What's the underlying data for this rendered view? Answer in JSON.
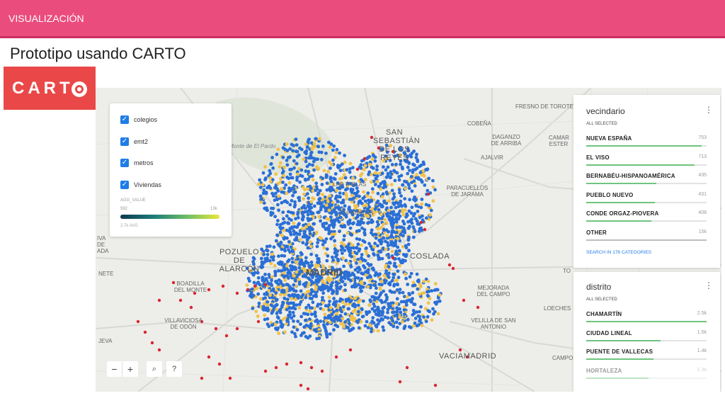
{
  "header": {
    "section": "VISUALIZACIÓN"
  },
  "slide": {
    "title": "Prototipo usando CARTO"
  },
  "logo": {
    "wordmark": "CART",
    "alt": "CARTO"
  },
  "legend": {
    "layers": [
      {
        "name": "colegios",
        "checked": true
      },
      {
        "name": "emt2",
        "checked": true
      },
      {
        "name": "metros",
        "checked": true
      },
      {
        "name": "Viviendas",
        "checked": true
      }
    ],
    "agg_label": "AGG_VALUE",
    "min": "592",
    "max": "13k",
    "avg": "2.7k AVG"
  },
  "map_controls": {
    "zoom_out": "−",
    "zoom_in": "+",
    "search": "⌕",
    "help": "?"
  },
  "places": {
    "fresno": "FRESNO DE TOROTE",
    "cobena": "COBEÑA",
    "daganzo": "DAGANZO DE ARRIBA",
    "camar": "CAMAR ESTER",
    "ajalvir": "AJALVIR",
    "sanse": "SAN SEBASTIÁN DE LOS REYES",
    "paracuellos": "PARACUELLOS DE JARAMA",
    "monte": "Monte de El Pardo",
    "las_tablas": "LAS TABLAS",
    "chamartin": "CHAMARTÍN",
    "pozuelo": "POZUELO DE ALARCÓN",
    "coslada": "COSLADA",
    "madrid": "MADRID",
    "boadilla": "BOADILLA DEL MONTE",
    "mejorada": "MEJORADA DEL CAMPO",
    "loeches": "LOECHES",
    "villaviciosa": "VILLAVICIOSA DE ODÓN",
    "velilla": "VELILLA DE SAN ANTONIO",
    "vaciamadrid": "VACIAMADRID",
    "campo": "CAMPO",
    "to": "TO",
    "iva": "IVA DE ADA",
    "nete": "NETE",
    "jeva": "JEVA"
  },
  "widget_vecindario": {
    "title": "vecindario",
    "selected": "ALL SELECTED",
    "menu": "⋮",
    "items": [
      {
        "name": "NUEVA ESPAÑA",
        "value": "753",
        "fraction": 0.96
      },
      {
        "name": "EL VISO",
        "value": "713",
        "fraction": 0.9
      },
      {
        "name": "BERNABÉU-HISPANOAMÉRICA",
        "value": "435",
        "fraction": 0.58
      },
      {
        "name": "PUEBLO NUEVO",
        "value": "431",
        "fraction": 0.57
      },
      {
        "name": "CONDE ORGAZ-PIOVERA",
        "value": "408",
        "fraction": 0.54
      },
      {
        "name": "OTHER",
        "value": "15k",
        "fraction": 1.0
      }
    ],
    "search": "SEARCH IN 176 CATEGORIES"
  },
  "widget_distrito": {
    "title": "distrito",
    "selected": "ALL SELECTED",
    "menu": "⋮",
    "items": [
      {
        "name": "CHAMARTÍN",
        "value": "2.5k",
        "fraction": 1.0
      },
      {
        "name": "CIUDAD LINEAL",
        "value": "1.5k",
        "fraction": 0.62
      },
      {
        "name": "PUENTE DE VALLECAS",
        "value": "1.4k",
        "fraction": 0.56
      },
      {
        "name": "HORTALEZA",
        "value": "1.3k",
        "fraction": 0.52
      }
    ]
  },
  "colors": {
    "header": "#ea4c7e",
    "logo": "#ea4848",
    "point_blue": "#2a6fd6",
    "point_yellow": "#f0c24a",
    "point_red": "#d8262e",
    "bar": "#6fc47f"
  }
}
